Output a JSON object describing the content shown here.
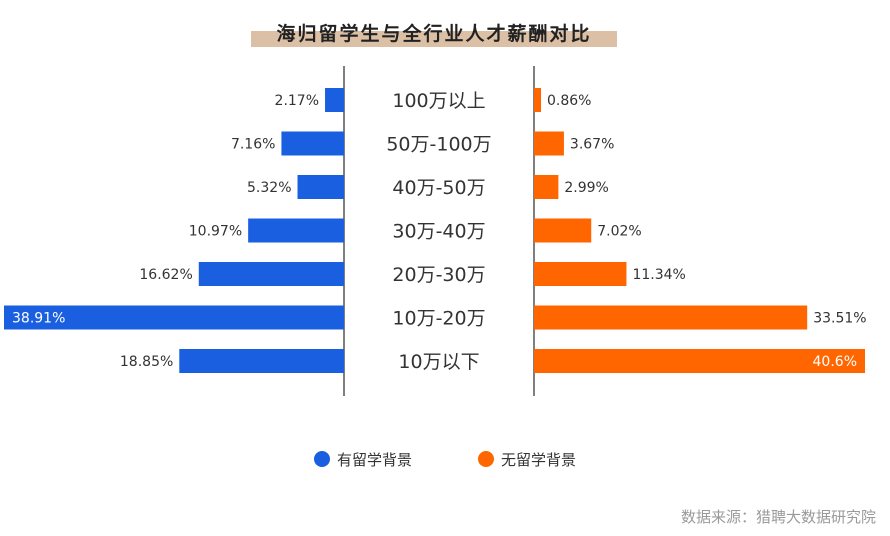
{
  "chart_data": {
    "type": "bar",
    "title": "海归留学生与全行业人才薪酬对比",
    "categories": [
      "100万以上",
      "50万-100万",
      "40万-50万",
      "30万-40万",
      "20万-30万",
      "10万-20万",
      "10万以下"
    ],
    "series": [
      {
        "name": "有留学背景",
        "values": [
          2.17,
          7.16,
          5.32,
          10.97,
          16.62,
          38.91,
          18.85
        ],
        "labels": [
          "2.17%",
          "7.16%",
          "5.32%",
          "10.97%",
          "16.62%",
          "38.91%",
          "18.85%"
        ],
        "color": "#1a5fe0"
      },
      {
        "name": "无留学背景",
        "values": [
          0.86,
          3.67,
          2.99,
          7.02,
          11.34,
          33.51,
          40.6
        ],
        "labels": [
          "0.86%",
          "3.67%",
          "2.99%",
          "7.02%",
          "11.34%",
          "33.51%",
          "40.6%"
        ],
        "color": "#ff6600"
      }
    ],
    "unit": "%",
    "legend_position": "bottom-center",
    "grid": false
  },
  "source": "数据来源：猎聘大数据研究院",
  "colors": {
    "title_highlight": "#dcc0a6",
    "axis_line": "#555555",
    "label_text": "#333333",
    "source_text": "#9a9a9a"
  }
}
